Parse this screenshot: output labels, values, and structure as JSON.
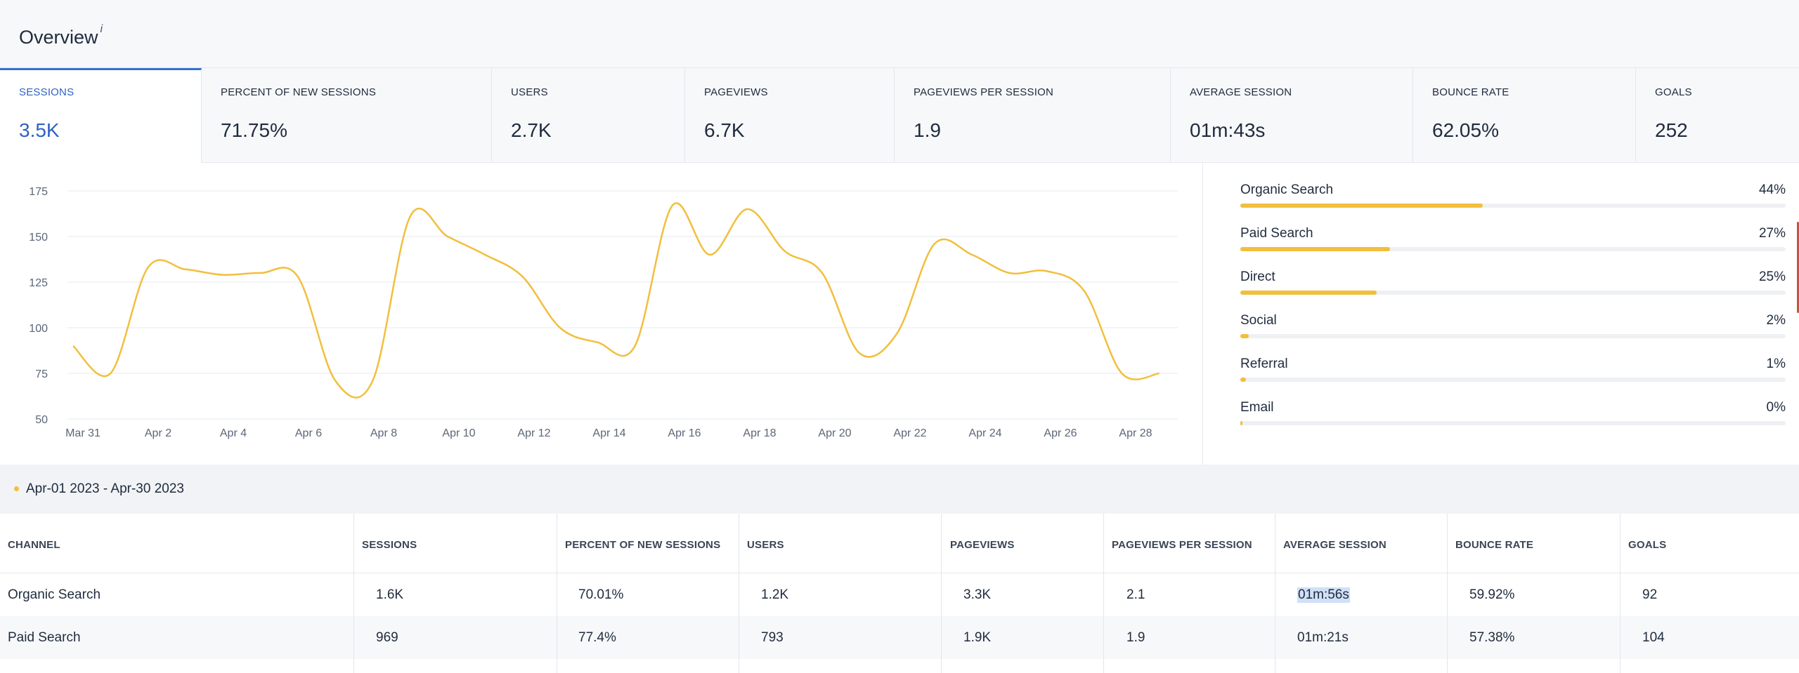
{
  "header": {
    "title": "Overview",
    "info_mark": "i"
  },
  "metrics": [
    {
      "label": "SESSIONS",
      "value": "3.5K",
      "active": true
    },
    {
      "label": "PERCENT OF NEW SESSIONS",
      "value": "71.75%"
    },
    {
      "label": "USERS",
      "value": "2.7K"
    },
    {
      "label": "PAGEVIEWS",
      "value": "6.7K"
    },
    {
      "label": "PAGEVIEWS PER SESSION",
      "value": "1.9"
    },
    {
      "label": "AVERAGE SESSION",
      "value": "01m:43s"
    },
    {
      "label": "BOUNCE RATE",
      "value": "62.05%"
    },
    {
      "label": "GOALS",
      "value": "252"
    }
  ],
  "chart_data": {
    "type": "line",
    "title": "",
    "xlabel": "",
    "ylabel": "",
    "ylim": [
      50,
      175
    ],
    "y_ticks": [
      175,
      150,
      125,
      100,
      75,
      50
    ],
    "x_ticks": [
      "Mar 31",
      "Apr 2",
      "Apr 4",
      "Apr 6",
      "Apr 8",
      "Apr 10",
      "Apr 12",
      "Apr 14",
      "Apr 16",
      "Apr 18",
      "Apr 20",
      "Apr 22",
      "Apr 24",
      "Apr 26",
      "Apr 28"
    ],
    "grid": true,
    "color": "#f2bf3d",
    "series": [
      {
        "x": [
          "Mar 31",
          "Apr 1",
          "Apr 2",
          "Apr 3",
          "Apr 4",
          "Apr 5",
          "Apr 6",
          "Apr 7",
          "Apr 8",
          "Apr 9",
          "Apr 10",
          "Apr 11",
          "Apr 12",
          "Apr 13",
          "Apr 14",
          "Apr 15",
          "Apr 16",
          "Apr 17",
          "Apr 18",
          "Apr 19",
          "Apr 20",
          "Apr 21",
          "Apr 22",
          "Apr 23",
          "Apr 24",
          "Apr 25",
          "Apr 26",
          "Apr 27",
          "Apr 28",
          "Apr 29"
        ],
        "values": [
          90,
          75,
          133,
          132,
          129,
          130,
          128,
          71,
          71,
          161,
          150,
          140,
          128,
          100,
          92,
          90,
          167,
          140,
          165,
          142,
          130,
          86,
          97,
          146,
          140,
          130,
          131,
          120,
          75,
          75
        ]
      }
    ]
  },
  "channels": [
    {
      "name": "Organic Search",
      "pct_label": "44%",
      "fraction": 0.445
    },
    {
      "name": "Paid Search",
      "pct_label": "27%",
      "fraction": 0.275
    },
    {
      "name": "Direct",
      "pct_label": "25%",
      "fraction": 0.25
    },
    {
      "name": "Social",
      "pct_label": "2%",
      "fraction": 0.016
    },
    {
      "name": "Referral",
      "pct_label": "1%",
      "fraction": 0.01
    },
    {
      "name": "Email",
      "pct_label": "0%",
      "fraction": 0.002
    }
  ],
  "date_range": "Apr-01 2023 - Apr-30 2023",
  "table": {
    "columns": [
      "CHANNEL",
      "SESSIONS",
      "PERCENT OF NEW SESSIONS",
      "USERS",
      "PAGEVIEWS",
      "PAGEVIEWS PER SESSION",
      "AVERAGE SESSION",
      "BOUNCE RATE",
      "GOALS"
    ],
    "rows": [
      [
        "Organic Search",
        "1.6K",
        "70.01%",
        "1.2K",
        "3.3K",
        "2.1",
        "01m:56s",
        "59.92%",
        "92"
      ],
      [
        "Paid Search",
        "969",
        "77.4%",
        "793",
        "1.9K",
        "1.9",
        "01m:21s",
        "57.38%",
        "104"
      ]
    ]
  }
}
